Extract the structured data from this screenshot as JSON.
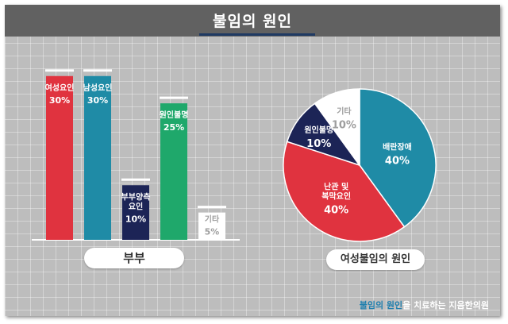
{
  "title": "불임의 원인",
  "charts": {
    "left_label": "부부",
    "right_label": "여성불임의 원인"
  },
  "footer": {
    "highlight": "불임의 원인",
    "rest": "을 치료하는 지음한의원"
  },
  "colors": {
    "red": "#e0333f",
    "teal": "#1f8ba6",
    "navy": "#1c2456",
    "green": "#1fa86b",
    "white": "#ffffff",
    "header": "#616161",
    "background": "#bdbdbd"
  },
  "chart_data": [
    {
      "type": "bar",
      "categories": [
        "여성요인",
        "남성요인",
        "부부양측 요인",
        "원인불명",
        "기타"
      ],
      "values": [
        30,
        30,
        10,
        25,
        5
      ],
      "labels": [
        {
          "line1": "여성요인",
          "line2": "",
          "pct": "30%"
        },
        {
          "line1": "남성요인",
          "line2": "",
          "pct": "30%"
        },
        {
          "line1": "부부양측",
          "line2": "요인",
          "pct": "10%"
        },
        {
          "line1": "원인불명",
          "line2": "",
          "pct": "25%"
        },
        {
          "line1": "기타",
          "line2": "",
          "pct": "5%"
        }
      ],
      "colors": [
        "#e0333f",
        "#1f8ba6",
        "#1c2456",
        "#1fa86b",
        "#ffffff"
      ],
      "xlabel": "부부",
      "ylim": [
        0,
        32
      ]
    },
    {
      "type": "pie",
      "slices": [
        {
          "label": "배란장애",
          "line1": "배란장애",
          "line2": "",
          "pct": "40%",
          "value": 40,
          "color": "#1f8ba6"
        },
        {
          "label": "난관 및 복막요인",
          "line1": "난관 및",
          "line2": "복막요인",
          "pct": "40%",
          "value": 40,
          "color": "#e0333f"
        },
        {
          "label": "원인불명",
          "line1": "원인불명",
          "line2": "",
          "pct": "10%",
          "value": 10,
          "color": "#1c2456"
        },
        {
          "label": "기타",
          "line1": "기타",
          "line2": "",
          "pct": "10%",
          "value": 10,
          "color": "#ffffff"
        }
      ],
      "xlabel": "여성불임의 원인"
    }
  ]
}
